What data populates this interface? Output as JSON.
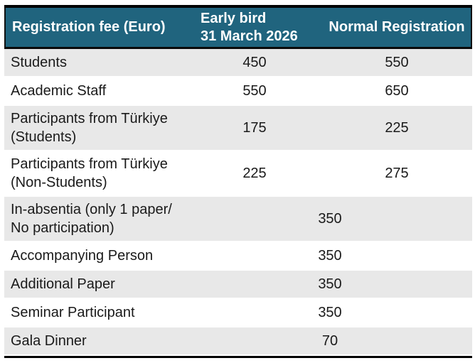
{
  "table": {
    "header": {
      "fee_label": "Registration fee (Euro)",
      "early_line1": "Early bird",
      "early_line2": "31 March 2026",
      "normal_label": "Normal Registration"
    },
    "rows": [
      {
        "line1": "Students",
        "early": "450",
        "normal": "550"
      },
      {
        "line1": "Academic Staff",
        "early": "550",
        "normal": "650"
      },
      {
        "line1": "Participants from Türkiye",
        "line2": "(Students)",
        "early": "175",
        "normal": "225"
      },
      {
        "line1": "Participants from Türkiye",
        "line2": "(Non-Students)",
        "early": "225",
        "normal": "275"
      },
      {
        "line1": "In-absentia (only 1 paper/",
        "line2": "No participation)",
        "merged": "350"
      },
      {
        "line1": "Accompanying Person",
        "merged": "350"
      },
      {
        "line1": "Additional Paper",
        "merged": "350"
      },
      {
        "line1": "Seminar Participant",
        "merged": "350"
      },
      {
        "line1": "Gala Dinner",
        "merged": "70"
      }
    ],
    "colors": {
      "header_bg": "#20647E",
      "header_text": "#FFFFFF",
      "alt_row_bg": "#E8E8E8",
      "body_text": "#1A1A1A",
      "border": "#000000"
    }
  }
}
